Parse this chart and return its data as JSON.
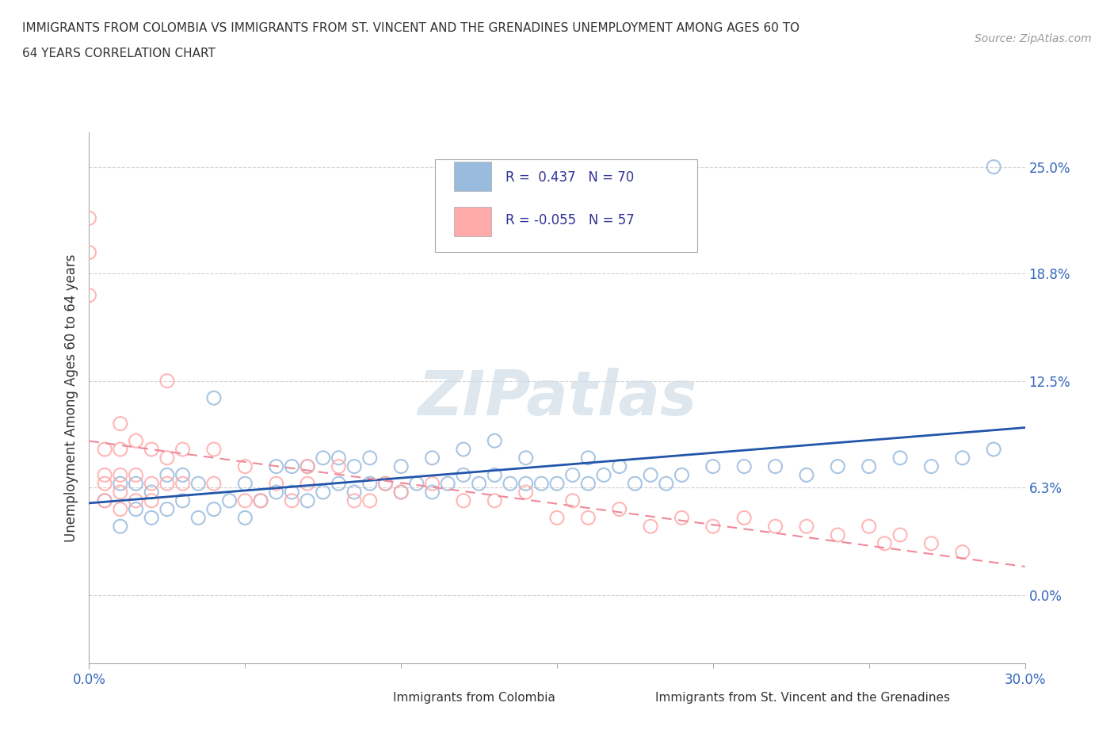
{
  "title_line1": "IMMIGRANTS FROM COLOMBIA VS IMMIGRANTS FROM ST. VINCENT AND THE GRENADINES UNEMPLOYMENT AMONG AGES 60 TO",
  "title_line2": "64 YEARS CORRELATION CHART",
  "source": "Source: ZipAtlas.com",
  "ylabel": "Unemployment Among Ages 60 to 64 years",
  "xlim": [
    0.0,
    0.3
  ],
  "ylim": [
    -0.04,
    0.27
  ],
  "yticks": [
    0.0,
    0.063,
    0.125,
    0.188,
    0.25
  ],
  "ytick_labels": [
    "0.0%",
    "6.3%",
    "12.5%",
    "18.8%",
    "25.0%"
  ],
  "xticks": [
    0.0,
    0.3
  ],
  "xtick_labels": [
    "0.0%",
    "30.0%"
  ],
  "color_colombia": "#99BBDD",
  "color_stvincent": "#FFAAAA",
  "line_color_colombia": "#2255AA",
  "line_color_stvincent": "#EE8899",
  "R_colombia": 0.437,
  "N_colombia": 70,
  "R_stvincent": -0.055,
  "N_stvincent": 57,
  "watermark": "ZIPatlas",
  "colombia_x": [
    0.005,
    0.01,
    0.01,
    0.015,
    0.015,
    0.02,
    0.02,
    0.025,
    0.025,
    0.03,
    0.03,
    0.035,
    0.035,
    0.04,
    0.04,
    0.045,
    0.05,
    0.05,
    0.055,
    0.06,
    0.06,
    0.065,
    0.065,
    0.07,
    0.07,
    0.075,
    0.075,
    0.08,
    0.08,
    0.085,
    0.085,
    0.09,
    0.09,
    0.095,
    0.1,
    0.1,
    0.105,
    0.11,
    0.11,
    0.115,
    0.12,
    0.12,
    0.125,
    0.13,
    0.13,
    0.135,
    0.14,
    0.14,
    0.145,
    0.15,
    0.155,
    0.16,
    0.16,
    0.165,
    0.17,
    0.175,
    0.18,
    0.185,
    0.19,
    0.2,
    0.21,
    0.22,
    0.23,
    0.24,
    0.25,
    0.26,
    0.27,
    0.28,
    0.29,
    0.29
  ],
  "colombia_y": [
    0.055,
    0.04,
    0.065,
    0.05,
    0.065,
    0.045,
    0.06,
    0.05,
    0.07,
    0.055,
    0.07,
    0.045,
    0.065,
    0.05,
    0.115,
    0.055,
    0.045,
    0.065,
    0.055,
    0.06,
    0.075,
    0.06,
    0.075,
    0.055,
    0.075,
    0.06,
    0.08,
    0.065,
    0.08,
    0.06,
    0.075,
    0.065,
    0.08,
    0.065,
    0.06,
    0.075,
    0.065,
    0.06,
    0.08,
    0.065,
    0.07,
    0.085,
    0.065,
    0.07,
    0.09,
    0.065,
    0.065,
    0.08,
    0.065,
    0.065,
    0.07,
    0.065,
    0.08,
    0.07,
    0.075,
    0.065,
    0.07,
    0.065,
    0.07,
    0.075,
    0.075,
    0.075,
    0.07,
    0.075,
    0.075,
    0.08,
    0.075,
    0.08,
    0.085,
    0.25
  ],
  "stvincent_x": [
    0.0,
    0.0,
    0.0,
    0.005,
    0.005,
    0.005,
    0.005,
    0.01,
    0.01,
    0.01,
    0.01,
    0.01,
    0.015,
    0.015,
    0.015,
    0.02,
    0.02,
    0.02,
    0.025,
    0.025,
    0.025,
    0.03,
    0.03,
    0.04,
    0.04,
    0.05,
    0.05,
    0.055,
    0.06,
    0.065,
    0.07,
    0.07,
    0.08,
    0.085,
    0.09,
    0.095,
    0.1,
    0.11,
    0.12,
    0.13,
    0.14,
    0.15,
    0.155,
    0.16,
    0.17,
    0.18,
    0.19,
    0.2,
    0.21,
    0.22,
    0.23,
    0.24,
    0.25,
    0.255,
    0.26,
    0.27,
    0.28
  ],
  "stvincent_y": [
    0.22,
    0.2,
    0.175,
    0.055,
    0.065,
    0.07,
    0.085,
    0.05,
    0.06,
    0.07,
    0.085,
    0.1,
    0.055,
    0.07,
    0.09,
    0.055,
    0.065,
    0.085,
    0.065,
    0.08,
    0.125,
    0.065,
    0.085,
    0.065,
    0.085,
    0.055,
    0.075,
    0.055,
    0.065,
    0.055,
    0.065,
    0.075,
    0.075,
    0.055,
    0.055,
    0.065,
    0.06,
    0.065,
    0.055,
    0.055,
    0.06,
    0.045,
    0.055,
    0.045,
    0.05,
    0.04,
    0.045,
    0.04,
    0.045,
    0.04,
    0.04,
    0.035,
    0.04,
    0.03,
    0.035,
    0.03,
    0.025
  ]
}
